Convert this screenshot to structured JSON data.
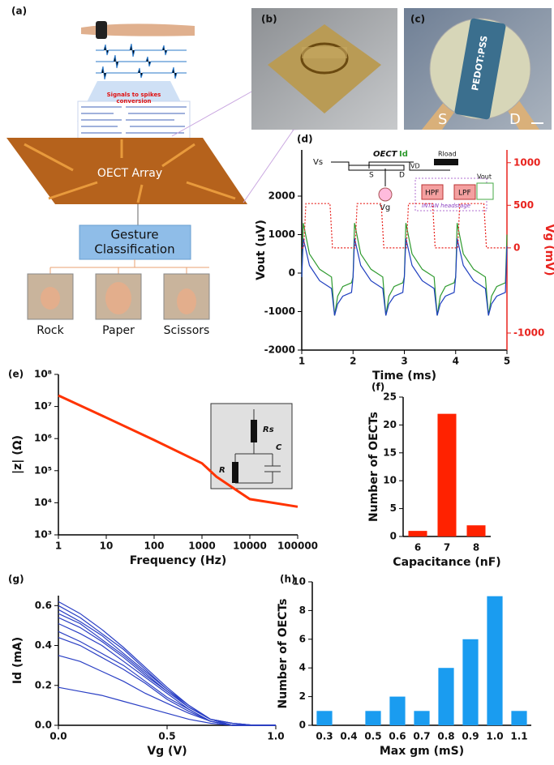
{
  "panels": {
    "a": {
      "label": "(a)",
      "signal_lines": [
        "Signals to spikes",
        "conversion"
      ],
      "array_text": "OECT Array",
      "classification_lines": [
        "Gesture",
        "Classification"
      ],
      "gestures": [
        "Rock",
        "Paper",
        "Scissors"
      ]
    },
    "b": {
      "label": "(b)"
    },
    "c": {
      "label": "(c)",
      "material": "PEDOT:PSS",
      "source": "S",
      "drain": "D"
    }
  },
  "chart_data": [
    {
      "type": "line",
      "panel_label": "(d)",
      "xlabel": "Time (ms)",
      "ylabel": "Vout (uV)",
      "y2label": "Vg (mV)",
      "y2color": "#e8231e",
      "xlim": [
        1,
        5
      ],
      "xticks": [
        1,
        2,
        3,
        4,
        5
      ],
      "ylim": [
        -2000,
        3200
      ],
      "yticks": [
        -2000,
        -1000,
        0,
        1000,
        2000
      ],
      "y2lim": [
        -1200,
        1150
      ],
      "y2ticks": [
        -1000,
        0,
        500,
        1000
      ],
      "inset": {
        "source": "Vs",
        "device": "OECT",
        "current": "Id",
        "drain_voltage": "VD",
        "load": "Rload",
        "s": "S",
        "d": "D",
        "gate": "Vg",
        "hpf": "HPF",
        "lpf": "LPF",
        "output": "Vout",
        "headstage": "INTAN headstage"
      },
      "series": [
        {
          "color": "#2e9a2e",
          "x": [
            1,
            1.03,
            1.15,
            1.35,
            1.58,
            1.64,
            1.7,
            1.8,
            1.97,
            2,
            2.03,
            2.15,
            2.35,
            2.58,
            2.64,
            2.7,
            2.8,
            2.97,
            3,
            3.03,
            3.15,
            3.35,
            3.58,
            3.64,
            3.7,
            3.8,
            3.97,
            4,
            4.03,
            4.15,
            4.35,
            4.58,
            4.64,
            4.7,
            4.8,
            4.97,
            5
          ],
          "values": [
            -100,
            1300,
            500,
            100,
            -100,
            -1100,
            -600,
            -350,
            -250,
            -100,
            1300,
            500,
            100,
            -100,
            -1100,
            -600,
            -350,
            -250,
            -100,
            1300,
            500,
            100,
            -100,
            -1100,
            -600,
            -350,
            -250,
            -100,
            1300,
            500,
            100,
            -100,
            -1100,
            -600,
            -350,
            -250,
            1000
          ]
        },
        {
          "color": "#1f3fbf",
          "x": [
            1,
            1.03,
            1.15,
            1.35,
            1.58,
            1.64,
            1.7,
            1.8,
            1.97,
            2,
            2.03,
            2.15,
            2.35,
            2.58,
            2.64,
            2.7,
            2.8,
            2.97,
            3,
            3.03,
            3.15,
            3.35,
            3.58,
            3.64,
            3.7,
            3.8,
            3.97,
            4,
            4.03,
            4.15,
            4.35,
            4.58,
            4.64,
            4.7,
            4.8,
            4.97,
            5
          ],
          "values": [
            -100,
            900,
            200,
            -200,
            -400,
            -1100,
            -800,
            -600,
            -500,
            -100,
            900,
            200,
            -200,
            -400,
            -1100,
            -800,
            -600,
            -500,
            -100,
            900,
            200,
            -200,
            -400,
            -1100,
            -800,
            -600,
            -500,
            -100,
            900,
            200,
            -200,
            -400,
            -1100,
            -800,
            -600,
            -500,
            700
          ]
        },
        {
          "color": "#e8231e",
          "axis": "y2",
          "dash": "dotted",
          "x": [
            1,
            1.04,
            1.08,
            1.55,
            1.6,
            2.04,
            2.08,
            2.55,
            2.6,
            3.04,
            3.08,
            3.55,
            3.6,
            4.04,
            4.08,
            4.55,
            4.6,
            5
          ],
          "values": [
            0,
            0,
            520,
            520,
            0,
            0,
            520,
            520,
            0,
            0,
            520,
            520,
            0,
            0,
            520,
            520,
            0,
            0
          ]
        }
      ]
    },
    {
      "type": "line",
      "panel_label": "(e)",
      "xlabel": "Frequency (Hz)",
      "ylabel": "|z| (Ω)",
      "xscale": "log",
      "yscale": "log",
      "xlim": [
        1,
        100000
      ],
      "xticks": [
        1,
        10,
        100,
        1000,
        10000,
        100000
      ],
      "ylim": [
        1000,
        100000000
      ],
      "yticks": [
        {
          "value": 1000,
          "label": "10³"
        },
        {
          "value": 10000,
          "label": "10⁴"
        },
        {
          "value": 100000,
          "label": "10⁵"
        },
        {
          "value": 1000000,
          "label": "10⁶"
        },
        {
          "value": 10000000,
          "label": "10⁷"
        },
        {
          "value": 100000000,
          "label": "10⁸"
        }
      ],
      "inset": {
        "series_resistor": "Rs",
        "resistor": "R",
        "capacitor": "C"
      },
      "x": [
        1,
        10,
        100,
        1000,
        2000,
        5000,
        10000,
        30000,
        100000
      ],
      "series": [
        {
          "color": "#ff3300",
          "values": [
            22000000,
            4500000,
            900000,
            170000,
            65000,
            26000,
            13000,
            10000,
            7500
          ]
        }
      ]
    },
    {
      "type": "bar",
      "panel_label": "(f)",
      "xlabel": "Capacitance (nF)",
      "ylabel": "Number of OECTs",
      "categories": [
        "6",
        "7",
        "8"
      ],
      "values": [
        1,
        22,
        2
      ],
      "color": "#ff2200",
      "ylim": [
        0,
        25
      ],
      "yticks": [
        0,
        5,
        10,
        15,
        20,
        25
      ]
    },
    {
      "type": "line",
      "panel_label": "(g)",
      "xlabel": "Vg (V)",
      "ylabel": "Id (mA)",
      "xlim": [
        0,
        1
      ],
      "xticks": [
        {
          "value": 0,
          "label": "0.0"
        },
        0.5,
        {
          "value": 1,
          "label": "1.0"
        }
      ],
      "ylim": [
        0,
        0.65
      ],
      "yticks": [
        {
          "value": 0,
          "label": "0.0"
        },
        0.2,
        0.4,
        0.6
      ],
      "x": [
        0,
        0.1,
        0.2,
        0.3,
        0.4,
        0.5,
        0.6,
        0.7,
        0.8,
        0.9,
        1
      ],
      "series": [
        {
          "color": "#2a3fc4",
          "values": [
            0.62,
            0.56,
            0.48,
            0.39,
            0.29,
            0.19,
            0.1,
            0.03,
            0.01,
            0,
            0
          ]
        },
        {
          "color": "#2a3fc4",
          "values": [
            0.6,
            0.54,
            0.46,
            0.38,
            0.28,
            0.18,
            0.1,
            0.03,
            0.01,
            0,
            0
          ]
        },
        {
          "color": "#2a3fc4",
          "values": [
            0.58,
            0.52,
            0.45,
            0.36,
            0.27,
            0.18,
            0.09,
            0.03,
            0.01,
            0,
            0
          ]
        },
        {
          "color": "#2a3fc4",
          "values": [
            0.56,
            0.51,
            0.43,
            0.35,
            0.26,
            0.17,
            0.09,
            0.03,
            0,
            0,
            0
          ]
        },
        {
          "color": "#2a3fc4",
          "values": [
            0.54,
            0.49,
            0.42,
            0.34,
            0.25,
            0.17,
            0.09,
            0.03,
            0,
            0,
            0
          ]
        },
        {
          "color": "#2a3fc4",
          "values": [
            0.51,
            0.46,
            0.4,
            0.32,
            0.24,
            0.16,
            0.08,
            0.02,
            0,
            0,
            0
          ]
        },
        {
          "color": "#2a3fc4",
          "values": [
            0.47,
            0.42,
            0.36,
            0.3,
            0.22,
            0.14,
            0.08,
            0.02,
            0,
            0,
            0
          ]
        },
        {
          "color": "#2a3fc4",
          "values": [
            0.44,
            0.4,
            0.34,
            0.28,
            0.21,
            0.13,
            0.07,
            0.02,
            0,
            0,
            0
          ]
        },
        {
          "color": "#2a3fc4",
          "values": [
            0.35,
            0.32,
            0.27,
            0.22,
            0.16,
            0.11,
            0.06,
            0.02,
            0,
            0,
            0
          ]
        },
        {
          "color": "#2a3fc4",
          "values": [
            0.19,
            0.17,
            0.15,
            0.12,
            0.09,
            0.06,
            0.03,
            0.01,
            0,
            0,
            0
          ]
        }
      ]
    },
    {
      "type": "bar",
      "panel_label": "(h)",
      "xlabel": "Max gm (mS)",
      "ylabel": "Number of OECTs",
      "categories": [
        "0.3",
        "0.4",
        "0.5",
        "0.6",
        "0.7",
        "0.8",
        "0.9",
        "1.0",
        "1.1"
      ],
      "values": [
        1,
        0,
        1,
        2,
        1,
        4,
        6,
        9,
        1
      ],
      "color": "#1a9cf0",
      "ylim": [
        0,
        10
      ],
      "yticks": [
        0,
        2,
        4,
        6,
        8,
        10
      ]
    }
  ]
}
